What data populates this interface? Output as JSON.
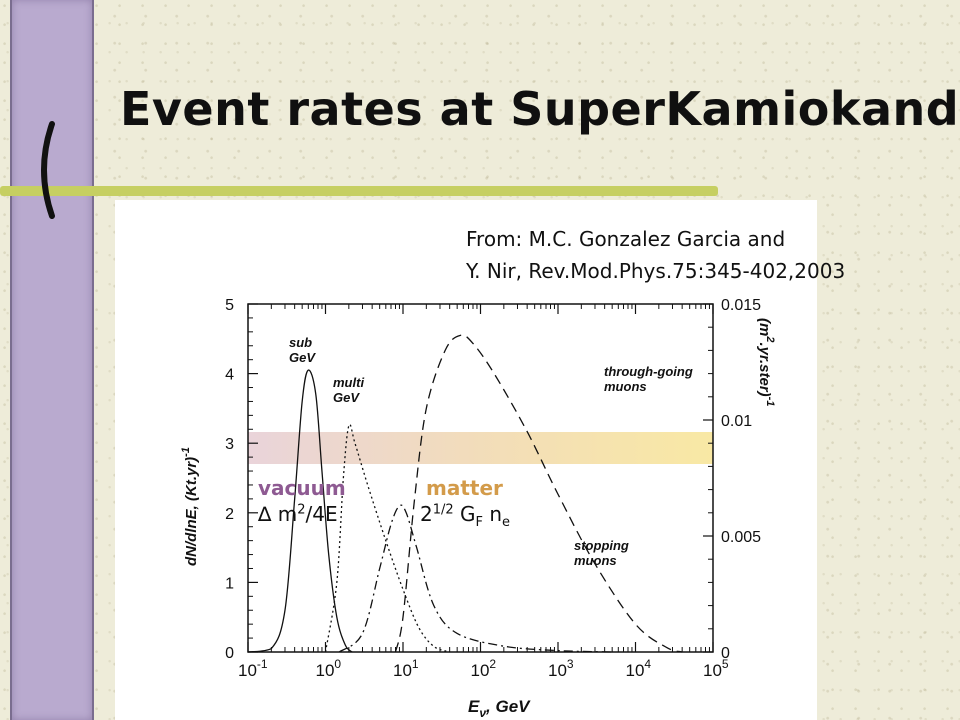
{
  "slide": {
    "title": "Event rates at SuperKamiokande",
    "source_line1": "From:  M.C. Gonzalez Garcia and",
    "source_line2": "Y. Nir, Rev.Mod.Phys.75:345-402,2003",
    "vacuum_label": "vacuum",
    "vacuum_formula_delta": "∆",
    "vacuum_formula_m": " m",
    "vacuum_formula_exp": "2",
    "vacuum_formula_rest": "/4E",
    "matter_label": "matter",
    "matter_formula_base": "2",
    "matter_formula_exp": "1/2",
    "matter_formula_g": " G",
    "matter_formula_gsub": "F",
    "matter_formula_n": " n",
    "matter_formula_nsub": "e"
  },
  "colors": {
    "sidebar": "#b9aacf",
    "accent_bar": "#c6cf62",
    "vacuum": "#8e5a92",
    "matter": "#d39b4a",
    "band": "#f8e69a"
  },
  "chart_data": {
    "type": "line",
    "xscale": "log",
    "xlim": [
      0.1,
      100000
    ],
    "ylim": [
      0,
      5
    ],
    "y2lim": [
      0,
      0.015
    ],
    "xlabel_main": "E",
    "xlabel_sub": "ν",
    "xlabel_unit": ",  GeV",
    "ylabel": "dN/dlnE, (Kt.yr)",
    "ylabel_exp": "-1",
    "y2label": "(m",
    "y2label_exp": "2",
    "y2label_rest": ".yr.ster)",
    "y2label_exp2": "-1",
    "x_ticks": [
      {
        "value": 0.1,
        "base": "10",
        "exp": "-1"
      },
      {
        "value": 1,
        "base": "10",
        "exp": "0"
      },
      {
        "value": 10,
        "base": "10",
        "exp": "1"
      },
      {
        "value": 100,
        "base": "10",
        "exp": "2"
      },
      {
        "value": 1000,
        "base": "10",
        "exp": "3"
      },
      {
        "value": 10000,
        "base": "10",
        "exp": "4"
      },
      {
        "value": 100000,
        "base": "10",
        "exp": "5"
      }
    ],
    "y_ticks": [
      "0",
      "1",
      "2",
      "3",
      "4",
      "5"
    ],
    "y2_ticks": [
      {
        "value": 0,
        "label": "0"
      },
      {
        "value": 0.005,
        "label": "0.005"
      },
      {
        "value": 0.01,
        "label": "0.01"
      },
      {
        "value": 0.015,
        "label": "0.015"
      }
    ],
    "series": [
      {
        "name": "sub GeV",
        "axis": "left",
        "dash": "solid",
        "points": [
          [
            0.1,
            0
          ],
          [
            0.2,
            0.05
          ],
          [
            0.3,
            0.6
          ],
          [
            0.4,
            2.2
          ],
          [
            0.5,
            3.6
          ],
          [
            0.6,
            4.05
          ],
          [
            0.75,
            3.7
          ],
          [
            0.9,
            2.6
          ],
          [
            1.1,
            1.4
          ],
          [
            1.4,
            0.5
          ],
          [
            1.8,
            0.1
          ],
          [
            2.2,
            0
          ]
        ]
      },
      {
        "name": "multi GeV",
        "axis": "left",
        "dash": "dotted",
        "points": [
          [
            1.0,
            0
          ],
          [
            1.4,
            1.0
          ],
          [
            1.7,
            2.5
          ],
          [
            2.0,
            3.25
          ],
          [
            2.4,
            3.0
          ],
          [
            3.5,
            2.4
          ],
          [
            6,
            1.6
          ],
          [
            10,
            0.9
          ],
          [
            16,
            0.35
          ],
          [
            25,
            0.08
          ],
          [
            40,
            0
          ]
        ]
      },
      {
        "name": "stopping muons",
        "axis": "right",
        "dash": "dashdot",
        "points": [
          [
            1.5,
            0
          ],
          [
            3,
            0.0008
          ],
          [
            5,
            0.0036
          ],
          [
            7,
            0.0055
          ],
          [
            9,
            0.0063
          ],
          [
            11,
            0.006
          ],
          [
            15,
            0.0045
          ],
          [
            25,
            0.002
          ],
          [
            50,
            0.0008
          ],
          [
            200,
            0.00025
          ],
          [
            1000,
            6e-05
          ],
          [
            5000,
            0
          ]
        ]
      },
      {
        "name": "through-going muons",
        "axis": "right",
        "dash": "dashed",
        "points": [
          [
            8,
            0
          ],
          [
            10,
            0.0015
          ],
          [
            14,
            0.0065
          ],
          [
            20,
            0.0105
          ],
          [
            35,
            0.013
          ],
          [
            55,
            0.01365
          ],
          [
            80,
            0.0133
          ],
          [
            150,
            0.012
          ],
          [
            400,
            0.0095
          ],
          [
            1000,
            0.0068
          ],
          [
            3000,
            0.0038
          ],
          [
            10000,
            0.0012
          ],
          [
            25000,
            0.0002
          ],
          [
            40000,
            0
          ]
        ]
      }
    ],
    "annotations": [
      {
        "lines": [
          "sub",
          "GeV"
        ]
      },
      {
        "lines": [
          "multi",
          "GeV"
        ]
      },
      {
        "lines": [
          "through-going",
          "muons"
        ]
      },
      {
        "lines": [
          "stopping",
          "muons"
        ]
      }
    ]
  }
}
